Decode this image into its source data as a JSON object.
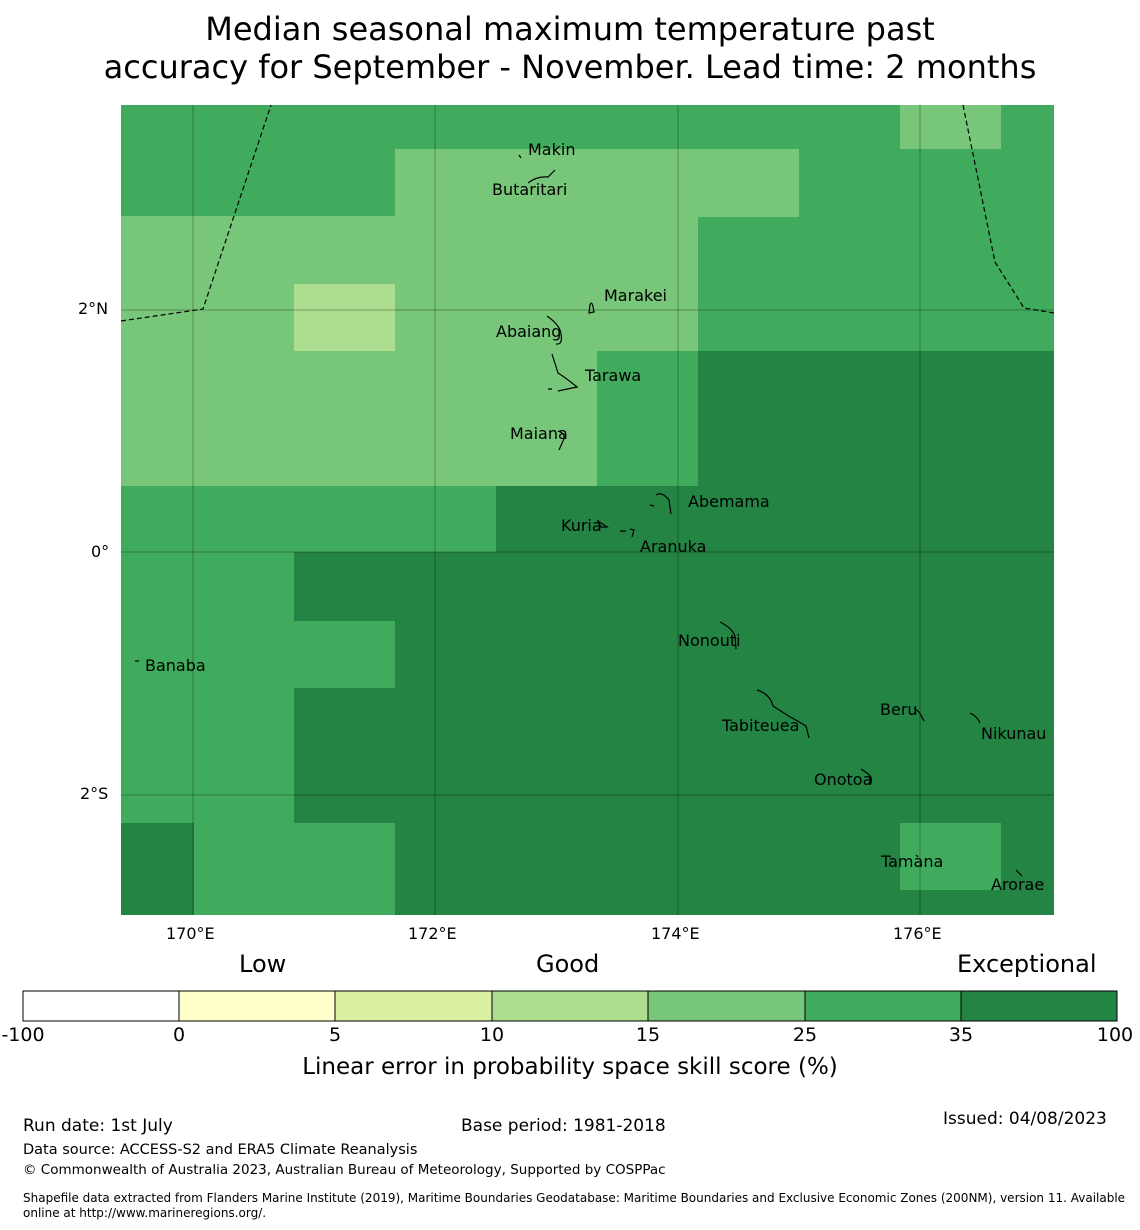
{
  "title_line1": "Median seasonal maximum temperature past",
  "title_line2": "accuracy for September - November. Lead time: 2 months",
  "colors": {
    "c15_25": "#78c679",
    "c25_35": "#41ab5d",
    "c35_100": "#238443",
    "c10_15": "#addd8e",
    "c5_10": "#d9f0a3",
    "c0_5": "#ffffcc",
    "cneg": "#ffffff"
  },
  "axes": {
    "lon_ticks": [
      "170°E",
      "172°E",
      "174°E",
      "176°E"
    ],
    "lat_ticks": [
      "2°N",
      "0°",
      "2°S"
    ]
  },
  "islands": {
    "makin": "Makin",
    "butaritari": "Butaritari",
    "marakei": "Marakei",
    "abaiang": "Abaiang",
    "tarawa": "Tarawa",
    "maiana": "Maiana",
    "abemama": "Abemama",
    "kuria": "Kuria",
    "aranuka": "Aranuka",
    "nonouti": "Nonouti",
    "banaba": "Banaba",
    "beru": "Beru",
    "tabiteuea": "Tabiteuea",
    "nikunau": "Nikunau",
    "onotoa": "Onotoa",
    "tamana": "Tamana",
    "arorae": "Arorae"
  },
  "colorbar": {
    "categories": [
      "Low",
      "Good",
      "Exceptional"
    ],
    "ticks": [
      "-100",
      "0",
      "5",
      "10",
      "15",
      "25",
      "35",
      "100"
    ],
    "title": "Linear error in probability space skill score (%)"
  },
  "footer": {
    "run_date": "Run date: 1st July",
    "base_period": "Base period: 1981-2018",
    "issued": "Issued: 04/08/2023",
    "data_source": "Data source: ACCESS-S2 and ERA5 Climate Reanalysis",
    "copyright": "© Commonwealth of Australia 2023, Australian Bureau of Meteorology, Supported by COSPPac",
    "shapefile_line1": "Shapefile data extracted from Flanders Marine Institute (2019), Maritime Boundaries Geodatabase: Maritime Boundaries and Exclusive Economic Zones (200NM), version 11. Available",
    "shapefile_line2": "online at http://www.marineregions.org/."
  }
}
